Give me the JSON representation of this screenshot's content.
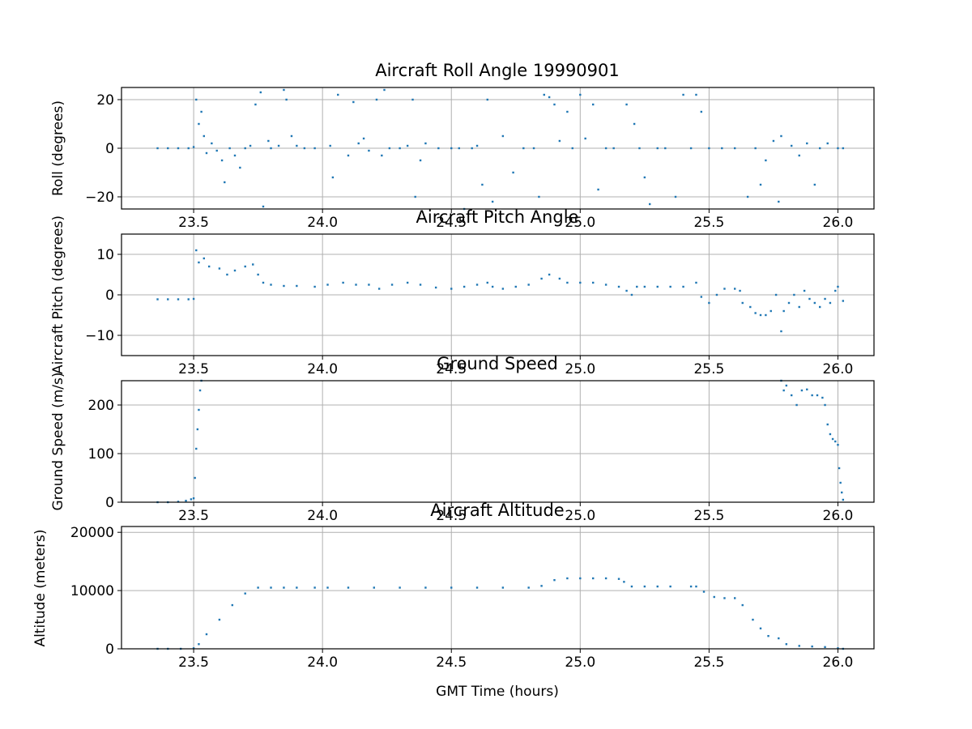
{
  "chart_data": [
    {
      "type": "scatter",
      "title": "Aircraft Roll Angle 19990901",
      "ylabel": "Roll (degrees)",
      "xlabel": "",
      "xlim": [
        23.22,
        26.14
      ],
      "ylim": [
        -25,
        25
      ],
      "xticks": [
        23.5,
        24.0,
        24.5,
        25.0,
        25.5,
        26.0
      ],
      "xtick_labels": [
        "23.5",
        "24.0",
        "24.5",
        "25.0",
        "25.5",
        "26.0"
      ],
      "yticks": [
        -20,
        0,
        20
      ],
      "ytick_labels": [
        "−20",
        "0",
        "20"
      ],
      "grid": true,
      "series_color": "#1f77b4",
      "points": [
        [
          23.36,
          0
        ],
        [
          23.4,
          0
        ],
        [
          23.44,
          0
        ],
        [
          23.48,
          0
        ],
        [
          23.5,
          0.5
        ],
        [
          23.51,
          20
        ],
        [
          23.52,
          10
        ],
        [
          23.53,
          15
        ],
        [
          23.54,
          5
        ],
        [
          23.55,
          -2
        ],
        [
          23.57,
          2
        ],
        [
          23.59,
          -1
        ],
        [
          23.61,
          -5
        ],
        [
          23.62,
          -14
        ],
        [
          23.64,
          0
        ],
        [
          23.66,
          -3
        ],
        [
          23.68,
          -8
        ],
        [
          23.7,
          0
        ],
        [
          23.72,
          1
        ],
        [
          23.74,
          18
        ],
        [
          23.76,
          23
        ],
        [
          23.77,
          -24
        ],
        [
          23.79,
          3
        ],
        [
          23.8,
          0
        ],
        [
          23.83,
          1
        ],
        [
          23.85,
          24
        ],
        [
          23.86,
          20
        ],
        [
          23.88,
          5
        ],
        [
          23.9,
          1
        ],
        [
          23.93,
          0
        ],
        [
          23.97,
          0
        ],
        [
          24.03,
          1
        ],
        [
          24.04,
          -12
        ],
        [
          24.06,
          22
        ],
        [
          24.1,
          -3
        ],
        [
          24.12,
          19
        ],
        [
          24.14,
          2
        ],
        [
          24.16,
          4
        ],
        [
          24.18,
          -1
        ],
        [
          24.21,
          20
        ],
        [
          24.23,
          -3
        ],
        [
          24.24,
          24
        ],
        [
          24.26,
          0
        ],
        [
          24.3,
          0
        ],
        [
          24.33,
          1
        ],
        [
          24.35,
          20
        ],
        [
          24.36,
          -20
        ],
        [
          24.38,
          -5
        ],
        [
          24.4,
          2
        ],
        [
          24.45,
          0
        ],
        [
          24.5,
          0
        ],
        [
          24.53,
          0
        ],
        [
          24.55,
          -25
        ],
        [
          24.58,
          0
        ],
        [
          24.6,
          1
        ],
        [
          24.62,
          -15
        ],
        [
          24.64,
          20
        ],
        [
          24.66,
          -22
        ],
        [
          24.7,
          5
        ],
        [
          24.74,
          -10
        ],
        [
          24.78,
          0
        ],
        [
          24.82,
          0
        ],
        [
          24.84,
          -20
        ],
        [
          24.86,
          22
        ],
        [
          24.88,
          21
        ],
        [
          24.9,
          18
        ],
        [
          24.92,
          3
        ],
        [
          24.95,
          15
        ],
        [
          24.97,
          0
        ],
        [
          25.0,
          22
        ],
        [
          25.02,
          4
        ],
        [
          25.05,
          18
        ],
        [
          25.07,
          -17
        ],
        [
          25.1,
          0
        ],
        [
          25.13,
          0
        ],
        [
          25.18,
          18
        ],
        [
          25.21,
          10
        ],
        [
          25.23,
          0
        ],
        [
          25.25,
          -12
        ],
        [
          25.27,
          -23
        ],
        [
          25.3,
          0
        ],
        [
          25.33,
          0
        ],
        [
          25.37,
          -20
        ],
        [
          25.4,
          22
        ],
        [
          25.43,
          0
        ],
        [
          25.45,
          22
        ],
        [
          25.47,
          15
        ],
        [
          25.5,
          0
        ],
        [
          25.55,
          0
        ],
        [
          25.6,
          0
        ],
        [
          25.65,
          -20
        ],
        [
          25.68,
          0
        ],
        [
          25.7,
          -15
        ],
        [
          25.72,
          -5
        ],
        [
          25.75,
          3
        ],
        [
          25.77,
          -22
        ],
        [
          25.78,
          5
        ],
        [
          25.82,
          1
        ],
        [
          25.85,
          -3
        ],
        [
          25.88,
          2
        ],
        [
          25.91,
          -15
        ],
        [
          25.93,
          0
        ],
        [
          25.96,
          2
        ],
        [
          26.0,
          0
        ],
        [
          26.02,
          0
        ]
      ]
    },
    {
      "type": "scatter",
      "title": "Aircraft Pitch Angle",
      "ylabel": "Aircraft Pitch (degrees)",
      "xlabel": "",
      "xlim": [
        23.22,
        26.14
      ],
      "ylim": [
        -15,
        15
      ],
      "xticks": [
        23.5,
        24.0,
        24.5,
        25.0,
        25.5,
        26.0
      ],
      "xtick_labels": [
        "23.5",
        "24.0",
        "24.5",
        "25.0",
        "25.5",
        "26.0"
      ],
      "yticks": [
        -10,
        0,
        10
      ],
      "ytick_labels": [
        "−10",
        "0",
        "10"
      ],
      "grid": true,
      "series_color": "#1f77b4",
      "points": [
        [
          23.36,
          -1.1
        ],
        [
          23.4,
          -1.1
        ],
        [
          23.44,
          -1.1
        ],
        [
          23.48,
          -1.1
        ],
        [
          23.5,
          -1
        ],
        [
          23.51,
          11
        ],
        [
          23.52,
          8
        ],
        [
          23.54,
          9
        ],
        [
          23.56,
          7
        ],
        [
          23.6,
          6.5
        ],
        [
          23.63,
          5
        ],
        [
          23.66,
          6
        ],
        [
          23.7,
          7
        ],
        [
          23.73,
          7.5
        ],
        [
          23.75,
          5
        ],
        [
          23.77,
          3
        ],
        [
          23.8,
          2.5
        ],
        [
          23.85,
          2.2
        ],
        [
          23.9,
          2.2
        ],
        [
          23.97,
          2
        ],
        [
          24.02,
          2.5
        ],
        [
          24.08,
          3
        ],
        [
          24.13,
          2.5
        ],
        [
          24.18,
          2.5
        ],
        [
          24.22,
          1.5
        ],
        [
          24.27,
          2.5
        ],
        [
          24.33,
          3
        ],
        [
          24.38,
          2.5
        ],
        [
          24.44,
          1.8
        ],
        [
          24.5,
          1.5
        ],
        [
          24.55,
          2
        ],
        [
          24.6,
          2.5
        ],
        [
          24.64,
          3
        ],
        [
          24.66,
          2
        ],
        [
          24.7,
          1.5
        ],
        [
          24.75,
          2
        ],
        [
          24.8,
          2.5
        ],
        [
          24.85,
          4
        ],
        [
          24.88,
          5
        ],
        [
          24.92,
          4
        ],
        [
          24.95,
          3
        ],
        [
          25.0,
          3
        ],
        [
          25.05,
          3
        ],
        [
          25.1,
          2.5
        ],
        [
          25.15,
          2
        ],
        [
          25.18,
          1
        ],
        [
          25.2,
          0
        ],
        [
          25.22,
          2
        ],
        [
          25.25,
          2
        ],
        [
          25.3,
          2
        ],
        [
          25.35,
          2
        ],
        [
          25.4,
          2
        ],
        [
          25.45,
          3
        ],
        [
          25.47,
          -0.5
        ],
        [
          25.5,
          -2
        ],
        [
          25.53,
          0
        ],
        [
          25.56,
          1.5
        ],
        [
          25.6,
          1.5
        ],
        [
          25.62,
          1
        ],
        [
          25.63,
          -2
        ],
        [
          25.66,
          -3
        ],
        [
          25.68,
          -4.5
        ],
        [
          25.7,
          -5
        ],
        [
          25.72,
          -5
        ],
        [
          25.74,
          -4
        ],
        [
          25.76,
          0
        ],
        [
          25.78,
          -9
        ],
        [
          25.79,
          -4
        ],
        [
          25.81,
          -2
        ],
        [
          25.83,
          0
        ],
        [
          25.85,
          -3
        ],
        [
          25.87,
          1
        ],
        [
          25.89,
          -1
        ],
        [
          25.91,
          -2
        ],
        [
          25.93,
          -3
        ],
        [
          25.95,
          -1
        ],
        [
          25.97,
          -2
        ],
        [
          25.99,
          1
        ],
        [
          26.0,
          2
        ],
        [
          26.02,
          -1.5
        ]
      ]
    },
    {
      "type": "scatter",
      "title": "Ground Speed",
      "ylabel": "Ground Speed (m/s)",
      "xlabel": "",
      "xlim": [
        23.22,
        26.14
      ],
      "ylim": [
        0,
        250
      ],
      "xticks": [
        23.5,
        24.0,
        24.5,
        25.0,
        25.5,
        26.0
      ],
      "xtick_labels": [
        "23.5",
        "24.0",
        "24.5",
        "25.0",
        "25.5",
        "26.0"
      ],
      "yticks": [
        0,
        100,
        200
      ],
      "ytick_labels": [
        "0",
        "100",
        "200"
      ],
      "grid": true,
      "series_color": "#1f77b4",
      "points": [
        [
          23.36,
          0
        ],
        [
          23.4,
          0
        ],
        [
          23.44,
          1
        ],
        [
          23.47,
          3
        ],
        [
          23.49,
          6
        ],
        [
          23.5,
          8
        ],
        [
          23.505,
          50
        ],
        [
          23.51,
          110
        ],
        [
          23.515,
          150
        ],
        [
          23.52,
          190
        ],
        [
          23.525,
          230
        ],
        [
          23.53,
          250
        ],
        [
          25.78,
          250
        ],
        [
          25.79,
          230
        ],
        [
          25.8,
          240
        ],
        [
          25.82,
          220
        ],
        [
          25.84,
          200
        ],
        [
          25.86,
          230
        ],
        [
          25.88,
          232
        ],
        [
          25.9,
          220
        ],
        [
          25.92,
          220
        ],
        [
          25.94,
          215
        ],
        [
          25.95,
          200
        ],
        [
          25.96,
          160
        ],
        [
          25.97,
          140
        ],
        [
          25.98,
          130
        ],
        [
          25.99,
          125
        ],
        [
          26.0,
          118
        ],
        [
          26.005,
          70
        ],
        [
          26.01,
          40
        ],
        [
          26.015,
          20
        ],
        [
          26.02,
          5
        ]
      ]
    },
    {
      "type": "scatter",
      "title": "Aircraft Altitude",
      "ylabel": "Altitude (meters)",
      "xlabel": "GMT Time (hours)",
      "xlim": [
        23.22,
        26.14
      ],
      "ylim": [
        0,
        21000
      ],
      "xticks": [
        23.5,
        24.0,
        24.5,
        25.0,
        25.5,
        26.0
      ],
      "xtick_labels": [
        "23.5",
        "24.0",
        "24.5",
        "25.0",
        "25.5",
        "26.0"
      ],
      "yticks": [
        0,
        10000,
        20000
      ],
      "ytick_labels": [
        "0",
        "10000",
        "20000"
      ],
      "grid": true,
      "series_color": "#1f77b4",
      "points": [
        [
          23.36,
          0
        ],
        [
          23.4,
          0
        ],
        [
          23.45,
          0
        ],
        [
          23.5,
          100
        ],
        [
          23.52,
          800
        ],
        [
          23.55,
          2500
        ],
        [
          23.6,
          5000
        ],
        [
          23.65,
          7500
        ],
        [
          23.7,
          9500
        ],
        [
          23.75,
          10500
        ],
        [
          23.8,
          10500
        ],
        [
          23.85,
          10500
        ],
        [
          23.9,
          10500
        ],
        [
          23.97,
          10500
        ],
        [
          24.02,
          10500
        ],
        [
          24.1,
          10500
        ],
        [
          24.2,
          10500
        ],
        [
          24.3,
          10500
        ],
        [
          24.4,
          10500
        ],
        [
          24.5,
          10500
        ],
        [
          24.6,
          10500
        ],
        [
          24.7,
          10500
        ],
        [
          24.8,
          10500
        ],
        [
          24.85,
          10800
        ],
        [
          24.9,
          11800
        ],
        [
          24.95,
          12100
        ],
        [
          25.0,
          12100
        ],
        [
          25.05,
          12100
        ],
        [
          25.1,
          12100
        ],
        [
          25.15,
          12000
        ],
        [
          25.17,
          11500
        ],
        [
          25.2,
          10700
        ],
        [
          25.25,
          10700
        ],
        [
          25.3,
          10700
        ],
        [
          25.35,
          10700
        ],
        [
          25.43,
          10700
        ],
        [
          25.45,
          10700
        ],
        [
          25.48,
          9800
        ],
        [
          25.52,
          8900
        ],
        [
          25.56,
          8700
        ],
        [
          25.6,
          8700
        ],
        [
          25.63,
          7500
        ],
        [
          25.67,
          5000
        ],
        [
          25.7,
          3500
        ],
        [
          25.73,
          2200
        ],
        [
          25.77,
          1800
        ],
        [
          25.8,
          800
        ],
        [
          25.85,
          500
        ],
        [
          25.9,
          400
        ],
        [
          25.95,
          300
        ],
        [
          26.0,
          100
        ],
        [
          26.02,
          0
        ]
      ]
    }
  ]
}
